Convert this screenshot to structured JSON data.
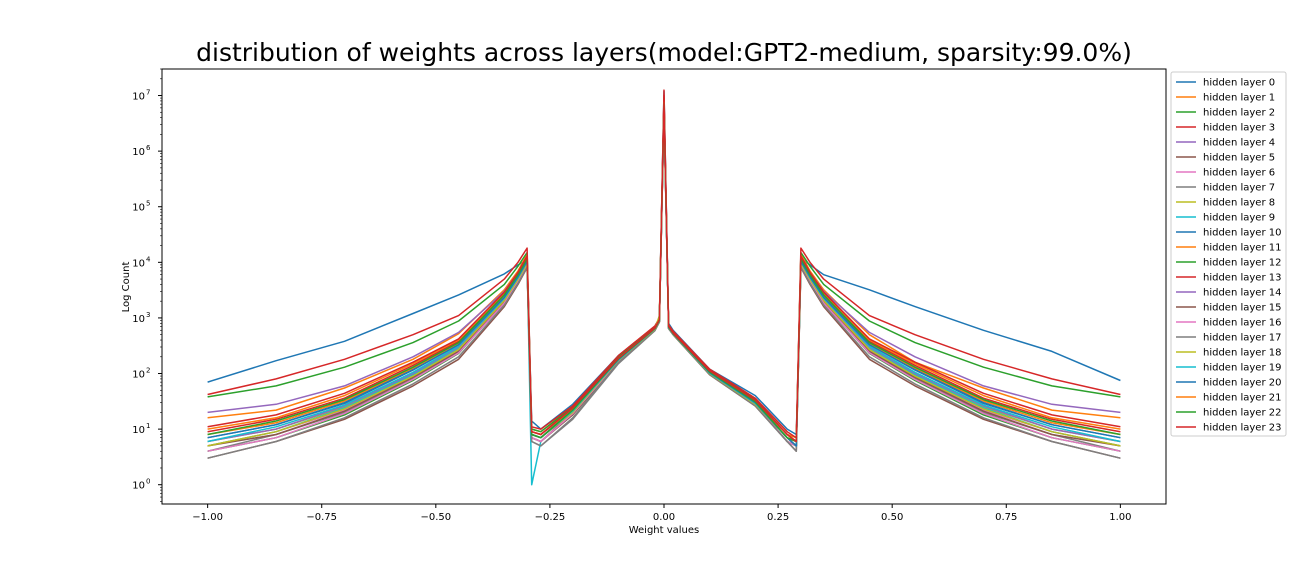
{
  "chart_data": {
    "type": "line",
    "title": "distribution of weights across layers(model:GPT2-medium, sparsity:99.0%)",
    "xlabel": "Weight values",
    "ylabel": "Log Count",
    "xlim": [
      -1.1,
      1.1
    ],
    "ylim": [
      0.45,
      30000000
    ],
    "yscale": "log",
    "xticks": [
      -1.0,
      -0.75,
      -0.5,
      -0.25,
      0.0,
      0.25,
      0.5,
      0.75,
      1.0
    ],
    "xtick_labels": [
      "−1.00",
      "−0.75",
      "−0.50",
      "−0.25",
      "0.00",
      "0.25",
      "0.50",
      "0.75",
      "1.00"
    ],
    "yticks": [
      1,
      10,
      100,
      1000,
      10000,
      100000,
      1000000,
      10000000
    ],
    "ytick_mantissa": [
      "10",
      "10",
      "10",
      "10",
      "10",
      "10",
      "10",
      "10"
    ],
    "ytick_exponents": [
      "0",
      "1",
      "2",
      "3",
      "4",
      "5",
      "6",
      "7"
    ],
    "grid": false,
    "legend_position": "right-outside",
    "x": [
      -1.0,
      -0.85,
      -0.7,
      -0.55,
      -0.45,
      -0.35,
      -0.32,
      -0.3,
      -0.29,
      -0.27,
      -0.2,
      -0.1,
      -0.02,
      -0.01,
      0.0,
      0.01,
      0.02,
      0.1,
      0.2,
      0.27,
      0.29,
      0.3,
      0.32,
      0.35,
      0.45,
      0.55,
      0.7,
      0.85,
      1.0
    ],
    "series": [
      {
        "name": "hidden layer 0",
        "color": "#1f77b4",
        "values": [
          70,
          170,
          380,
          1200,
          2600,
          6200,
          9000,
          11000,
          14,
          10,
          28,
          210,
          700,
          1000,
          12000000,
          800,
          600,
          120,
          40,
          10,
          8,
          12000,
          9000,
          6000,
          3200,
          1600,
          600,
          250,
          75
        ]
      },
      {
        "name": "hidden layer 1",
        "color": "#ff7f0e",
        "values": [
          16,
          22,
          55,
          180,
          520,
          3200,
          7000,
          14000,
          10,
          9,
          24,
          190,
          650,
          900,
          8000000,
          700,
          550,
          110,
          32,
          8,
          7,
          14000,
          7000,
          3200,
          500,
          160,
          55,
          22,
          16
        ]
      },
      {
        "name": "hidden layer 2",
        "color": "#2ca02c",
        "values": [
          38,
          60,
          130,
          360,
          880,
          4000,
          8500,
          15000,
          10,
          9,
          25,
          200,
          700,
          950,
          9000000,
          720,
          560,
          115,
          34,
          8,
          6,
          15000,
          8500,
          4000,
          880,
          360,
          130,
          60,
          38
        ]
      },
      {
        "name": "hidden layer 3",
        "color": "#d62728",
        "values": [
          42,
          80,
          180,
          500,
          1100,
          5000,
          10000,
          18000,
          11,
          10,
          26,
          210,
          720,
          980,
          10000000,
          750,
          580,
          120,
          36,
          9,
          7,
          18000,
          10000,
          5000,
          1100,
          500,
          180,
          80,
          42
        ]
      },
      {
        "name": "hidden layer 4",
        "color": "#9467bd",
        "values": [
          20,
          28,
          60,
          200,
          550,
          3000,
          6500,
          12000,
          9,
          8,
          22,
          180,
          630,
          880,
          7000000,
          680,
          530,
          105,
          30,
          7,
          6,
          12000,
          6500,
          3000,
          550,
          200,
          60,
          28,
          20
        ]
      },
      {
        "name": "hidden layer 5",
        "color": "#8c564b",
        "values": [
          3,
          6,
          15,
          60,
          180,
          1600,
          4000,
          8000,
          7,
          6,
          18,
          160,
          600,
          850,
          5000000,
          640,
          500,
          95,
          26,
          6,
          4,
          8000,
          4000,
          1600,
          180,
          60,
          15,
          6,
          3
        ]
      },
      {
        "name": "hidden layer 6",
        "color": "#e377c2",
        "values": [
          5,
          9,
          22,
          90,
          260,
          2000,
          4800,
          9000,
          8,
          7,
          20,
          170,
          620,
          870,
          6000000,
          660,
          510,
          100,
          28,
          7,
          5,
          9000,
          4800,
          2000,
          260,
          90,
          22,
          9,
          5
        ]
      },
      {
        "name": "hidden layer 7",
        "color": "#7f7f7f",
        "values": [
          4,
          8,
          20,
          80,
          240,
          1800,
          4500,
          8500,
          6,
          5,
          15,
          150,
          590,
          840,
          5500000,
          650,
          505,
          98,
          27,
          6,
          5,
          8500,
          4500,
          1800,
          240,
          80,
          20,
          8,
          4
        ]
      },
      {
        "name": "hidden layer 8",
        "color": "#bcbd22",
        "values": [
          6,
          10,
          25,
          100,
          290,
          2100,
          5000,
          9500,
          8,
          7,
          21,
          175,
          640,
          1100,
          6500000,
          670,
          515,
          102,
          29,
          7,
          5,
          9500,
          5000,
          2100,
          290,
          100,
          25,
          10,
          6
        ]
      },
      {
        "name": "hidden layer 9",
        "color": "#17becf",
        "values": [
          5,
          9,
          24,
          95,
          280,
          2100,
          5200,
          10000,
          1,
          6,
          20,
          170,
          630,
          890,
          6200000,
          660,
          510,
          100,
          28,
          7,
          5,
          10000,
          5200,
          2100,
          280,
          95,
          24,
          9,
          5
        ]
      },
      {
        "name": "hidden layer 10",
        "color": "#1f77b4",
        "values": [
          7,
          12,
          30,
          120,
          340,
          2400,
          5600,
          10500,
          8,
          7,
          22,
          180,
          640,
          900,
          6800000,
          680,
          520,
          104,
          30,
          7,
          5,
          10500,
          5600,
          2400,
          340,
          120,
          30,
          12,
          7
        ]
      },
      {
        "name": "hidden layer 11",
        "color": "#ff7f0e",
        "values": [
          8,
          13,
          32,
          125,
          350,
          2500,
          5800,
          11000,
          8,
          7,
          22,
          182,
          645,
          910,
          7200000,
          690,
          525,
          106,
          30,
          7,
          6,
          11000,
          5800,
          2500,
          350,
          125,
          32,
          13,
          8
        ]
      },
      {
        "name": "hidden layer 12",
        "color": "#2ca02c",
        "values": [
          4,
          7,
          18,
          75,
          230,
          1900,
          4600,
          9000,
          7,
          6,
          19,
          165,
          610,
          860,
          5800000,
          655,
          505,
          98,
          27,
          6,
          5,
          9000,
          4600,
          1900,
          230,
          75,
          18,
          7,
          4
        ]
      },
      {
        "name": "hidden layer 13",
        "color": "#d62728",
        "values": [
          9,
          15,
          36,
          140,
          380,
          2700,
          6200,
          12000,
          9,
          8,
          23,
          185,
          650,
          920,
          12500000,
          700,
          530,
          108,
          31,
          8,
          6,
          12000,
          6200,
          2700,
          380,
          140,
          36,
          15,
          9
        ]
      },
      {
        "name": "hidden layer 14",
        "color": "#9467bd",
        "values": [
          6,
          10,
          26,
          100,
          300,
          2200,
          5100,
          9800,
          8,
          7,
          21,
          175,
          635,
          895,
          6400000,
          670,
          515,
          101,
          29,
          7,
          5,
          9800,
          5100,
          2200,
          300,
          100,
          26,
          10,
          6
        ]
      },
      {
        "name": "hidden layer 15",
        "color": "#8c564b",
        "values": [
          5,
          8,
          21,
          85,
          250,
          1900,
          4700,
          9100,
          7,
          6,
          20,
          168,
          615,
          865,
          5900000,
          660,
          508,
          99,
          28,
          6,
          5,
          9100,
          4700,
          1900,
          250,
          85,
          21,
          8,
          5
        ]
      },
      {
        "name": "hidden layer 16",
        "color": "#e377c2",
        "values": [
          4,
          7,
          19,
          78,
          235,
          1850,
          4550,
          8800,
          7,
          6,
          19,
          166,
          612,
          862,
          5700000,
          655,
          506,
          98,
          27,
          6,
          5,
          8800,
          4550,
          1850,
          235,
          78,
          19,
          7,
          4
        ]
      },
      {
        "name": "hidden layer 17",
        "color": "#7f7f7f",
        "values": [
          3,
          6,
          16,
          65,
          200,
          1700,
          4200,
          8200,
          6,
          5,
          16,
          158,
          600,
          850,
          5200000,
          645,
          500,
          96,
          26,
          6,
          4,
          8200,
          4200,
          1700,
          200,
          65,
          16,
          6,
          3
        ]
      },
      {
        "name": "hidden layer 18",
        "color": "#bcbd22",
        "values": [
          5,
          9,
          23,
          90,
          270,
          2050,
          4950,
          9400,
          8,
          7,
          20,
          172,
          625,
          880,
          6100000,
          665,
          512,
          100,
          28,
          7,
          5,
          9400,
          4950,
          2050,
          270,
          90,
          23,
          9,
          5
        ]
      },
      {
        "name": "hidden layer 19",
        "color": "#17becf",
        "values": [
          6,
          11,
          27,
          105,
          310,
          2250,
          5300,
          10200,
          8,
          7,
          21,
          176,
          638,
          898,
          6600000,
          675,
          518,
          102,
          29,
          7,
          5,
          10200,
          5300,
          2250,
          310,
          105,
          27,
          11,
          6
        ]
      },
      {
        "name": "hidden layer 20",
        "color": "#1f77b4",
        "values": [
          7,
          12,
          29,
          115,
          330,
          2350,
          5500,
          10400,
          8,
          7,
          22,
          178,
          642,
          902,
          6900000,
          682,
          520,
          104,
          30,
          7,
          5,
          10400,
          5500,
          2350,
          330,
          115,
          29,
          12,
          7
        ]
      },
      {
        "name": "hidden layer 21",
        "color": "#ff7f0e",
        "values": [
          10,
          16,
          40,
          150,
          400,
          2800,
          6400,
          12500,
          9,
          8,
          23,
          186,
          652,
          925,
          7600000,
          705,
          532,
          110,
          32,
          8,
          6,
          12500,
          6400,
          2800,
          400,
          150,
          40,
          16,
          10
        ]
      },
      {
        "name": "hidden layer 22",
        "color": "#2ca02c",
        "values": [
          8,
          14,
          34,
          130,
          360,
          2600,
          6000,
          11500,
          8,
          7,
          22,
          184,
          648,
          915,
          7400000,
          695,
          528,
          107,
          31,
          7,
          6,
          11500,
          6000,
          2600,
          360,
          130,
          34,
          14,
          8
        ]
      },
      {
        "name": "hidden layer 23",
        "color": "#d62728",
        "values": [
          11,
          18,
          44,
          160,
          420,
          2900,
          6600,
          13000,
          9,
          8,
          24,
          188,
          660,
          935,
          8000000,
          710,
          535,
          112,
          33,
          8,
          6,
          13000,
          6600,
          2900,
          420,
          160,
          44,
          18,
          11
        ]
      }
    ]
  }
}
